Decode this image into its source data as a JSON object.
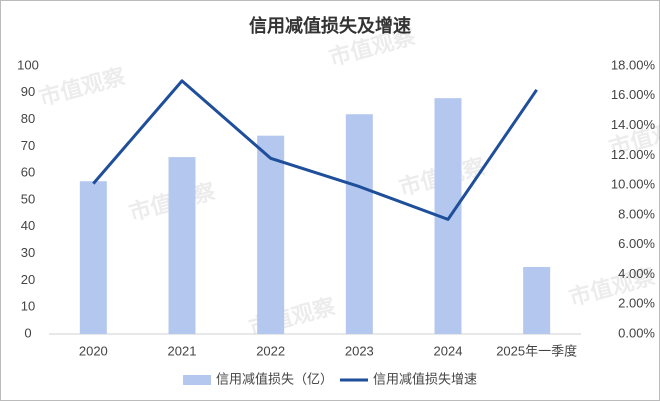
{
  "chart_data": {
    "type": "bar-line",
    "title": "信用减值损失及增速",
    "watermark": "市值观察",
    "categories": [
      "2020",
      "2021",
      "2022",
      "2023",
      "2024",
      "2025年一季度"
    ],
    "series": [
      {
        "name": "信用减值损失（亿）",
        "type": "bar",
        "color": "#b4c7ef",
        "values": [
          57,
          66,
          74,
          82,
          88,
          25
        ]
      },
      {
        "name": "信用减值损失增速",
        "type": "line",
        "axis": "y2",
        "color": "#1f4e9a",
        "values": [
          10.1,
          17.0,
          11.8,
          9.9,
          7.7,
          16.4
        ]
      }
    ],
    "ylim": [
      0,
      100
    ],
    "yticks": [
      0,
      10,
      20,
      30,
      40,
      50,
      60,
      70,
      80,
      90,
      100
    ],
    "y2lim": [
      0,
      18
    ],
    "y2ticks": [
      {
        "value": 0,
        "label": "0.00%"
      },
      {
        "value": 2,
        "label": "2.00%"
      },
      {
        "value": 4,
        "label": "4.00%"
      },
      {
        "value": 6,
        "label": "6.00%"
      },
      {
        "value": 8,
        "label": "8.00%"
      },
      {
        "value": 10,
        "label": "10.00%"
      },
      {
        "value": 12,
        "label": "12.00%"
      },
      {
        "value": 14,
        "label": "14.00%"
      },
      {
        "value": 16,
        "label": "16.00%"
      },
      {
        "value": 18,
        "label": "18.00%"
      }
    ],
    "legend": "bottom"
  }
}
